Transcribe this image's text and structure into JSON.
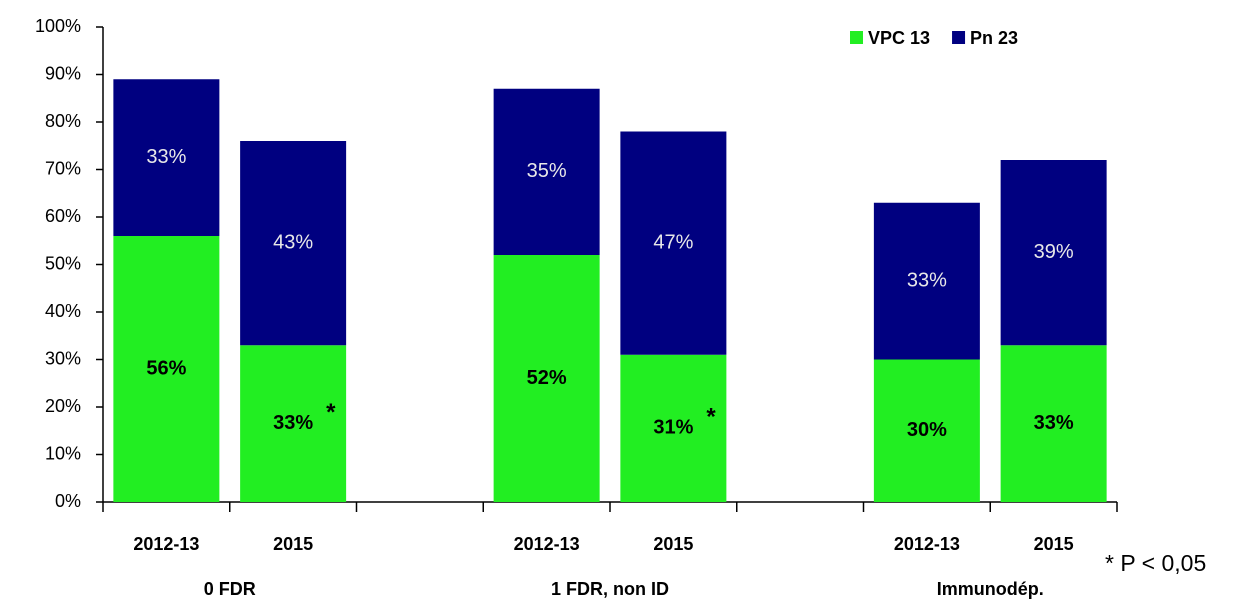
{
  "chart_data": {
    "type": "stacked_bar",
    "categories": [
      "2012-13",
      "2015",
      "2012-13",
      "2015",
      "2012-13",
      "2015"
    ],
    "groups": [
      "0 FDR",
      "1 FDR, non ID",
      "Immunodép."
    ],
    "series": [
      {
        "name": "VPC 13",
        "color": "#22ee22",
        "values": [
          56,
          33,
          52,
          31,
          30,
          33
        ],
        "value_labels": [
          "56%",
          "33%",
          "52%",
          "31%",
          "30%",
          "33%"
        ],
        "significance": [
          null,
          "*",
          null,
          "*",
          null,
          null
        ]
      },
      {
        "name": "Pn 23",
        "color": "#000080",
        "values": [
          33,
          43,
          35,
          47,
          33,
          39
        ],
        "value_labels": [
          "33%",
          "43%",
          "35%",
          "47%",
          "33%",
          "39%"
        ]
      }
    ],
    "ylim": [
      0,
      100
    ],
    "yticks": [
      {
        "value": 0,
        "label": "0%"
      },
      {
        "value": 10,
        "label": "10%"
      },
      {
        "value": 20,
        "label": "20%"
      },
      {
        "value": 30,
        "label": "30%"
      },
      {
        "value": 40,
        "label": "40%"
      },
      {
        "value": 50,
        "label": "50%"
      },
      {
        "value": 60,
        "label": "60%"
      },
      {
        "value": 70,
        "label": "70%"
      },
      {
        "value": 80,
        "label": "80%"
      },
      {
        "value": 90,
        "label": "90%"
      },
      {
        "value": 100,
        "label": "100%"
      }
    ],
    "grid": false,
    "legend": "top-right",
    "footnote": "* P < 0,05"
  }
}
